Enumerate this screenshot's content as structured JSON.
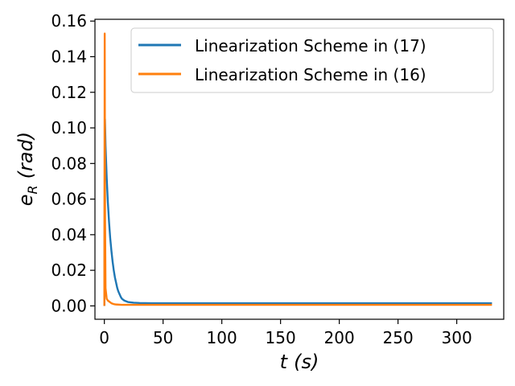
{
  "chart_data": {
    "type": "line",
    "xlabel_italic": "t",
    "xlabel_unit": "(s)",
    "ylabel_main": "e",
    "ylabel_sub": "R",
    "ylabel_unit": "(rad)",
    "xlim": [
      -8,
      340
    ],
    "ylim": [
      -0.0075,
      0.161
    ],
    "xticks": [
      0,
      50,
      100,
      150,
      200,
      250,
      300
    ],
    "xtick_labels": [
      "0",
      "50",
      "100",
      "150",
      "200",
      "250",
      "300"
    ],
    "yticks": [
      0.0,
      0.02,
      0.04,
      0.06,
      0.08,
      0.1,
      0.12,
      0.14,
      0.16
    ],
    "ytick_labels": [
      "0.00",
      "0.02",
      "0.04",
      "0.06",
      "0.08",
      "0.10",
      "0.12",
      "0.14",
      "0.16"
    ],
    "grid": false,
    "legend_position": "upper-right",
    "series": [
      {
        "name": "Linearization Scheme in (17)",
        "color": "#1f77b4",
        "x": [
          0,
          0.5,
          1,
          2,
          3,
          4,
          5,
          6,
          7,
          8,
          9,
          10,
          11,
          12,
          13,
          14,
          15,
          17,
          20,
          25,
          30,
          40,
          60,
          100,
          150,
          200,
          250,
          300,
          330
        ],
        "y": [
          0,
          0.105,
          0.09,
          0.072,
          0.058,
          0.047,
          0.038,
          0.031,
          0.025,
          0.02,
          0.016,
          0.013,
          0.01,
          0.008,
          0.0065,
          0.005,
          0.004,
          0.003,
          0.0022,
          0.0018,
          0.0016,
          0.0015,
          0.0015,
          0.0015,
          0.0015,
          0.0015,
          0.0015,
          0.0015,
          0.0015
        ]
      },
      {
        "name": "Linearization Scheme in (16)",
        "color": "#ff7f0e",
        "x": [
          0,
          0.3,
          0.6,
          1,
          2,
          3,
          4,
          5,
          6,
          8,
          10,
          15,
          20,
          30,
          50,
          100,
          150,
          200,
          250,
          300,
          330
        ],
        "y": [
          0,
          0.153,
          0.05,
          0.01,
          0.004,
          0.003,
          0.0025,
          0.002,
          0.0015,
          0.001,
          0.0008,
          0.0006,
          0.0006,
          0.0006,
          0.0006,
          0.0006,
          0.0006,
          0.0006,
          0.0006,
          0.0006,
          0.0006
        ]
      }
    ]
  }
}
